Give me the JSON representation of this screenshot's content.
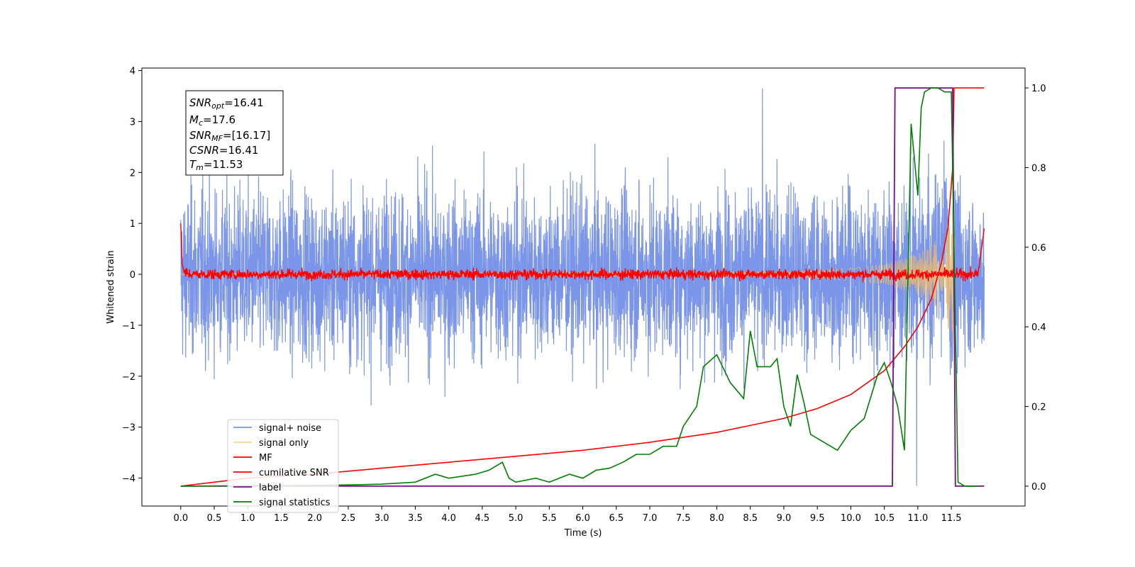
{
  "chart_data": {
    "type": "line",
    "xlabel": "Time (s)",
    "ylabel": "Whitened strain",
    "xlim": [
      -0.58,
      12.6
    ],
    "ylim": [
      -4.55,
      4.05
    ],
    "y2lim": [
      -0.05,
      1.05
    ],
    "x_ticks": [
      "0.0",
      "0.5",
      "1.0",
      "1.5",
      "2.0",
      "2.5",
      "3.0",
      "3.5",
      "4.0",
      "4.5",
      "5.0",
      "5.5",
      "6.0",
      "6.5",
      "7.0",
      "7.5",
      "8.0",
      "8.5",
      "9.0",
      "9.5",
      "10.0",
      "10.5",
      "11.0",
      "11.5"
    ],
    "y_ticks": [
      "4",
      "3",
      "2",
      "1",
      "0",
      "−1",
      "−2",
      "−3",
      "−4"
    ],
    "y2_ticks": [
      "1.0",
      "0.8",
      "0.6",
      "0.4",
      "0.2",
      "0.0"
    ],
    "legend_position": "lower-left",
    "legend": [
      {
        "label": "signal+ noise",
        "color": "#7b96e8"
      },
      {
        "label": "signal only",
        "color": "#f5d78e"
      },
      {
        "label": "MF",
        "color": "#ff0000"
      },
      {
        "label": "cumilative SNR",
        "color": "#ff0000"
      },
      {
        "label": "label",
        "color": "#7b0a8c"
      },
      {
        "label": "signal statistics",
        "color": "#008000"
      }
    ],
    "info_box": {
      "snr_opt": {
        "base": "SNR",
        "sub": "opt",
        "value": "=16.41"
      },
      "mc": {
        "base": "M",
        "sub": "c",
        "value": "=17.6"
      },
      "snr_mf": {
        "base": "SNR",
        "sub": "MF",
        "value": "=[16.17]"
      },
      "csnr": {
        "base": "CSNR",
        "sub": "",
        "value": "=16.41"
      },
      "tm": {
        "base": "T",
        "sub": "m",
        "value": "=11.53"
      }
    },
    "series": [
      {
        "name": "signal+ noise",
        "axis": "left",
        "x_range": [
          0.0,
          11.99
        ],
        "noise_std": 0.85,
        "peak": 3.65,
        "trough": -4.15
      },
      {
        "name": "signal only",
        "axis": "left",
        "x_range": [
          0.0,
          11.55
        ],
        "amplitude_x": [
          0.0,
          9.0,
          10.0,
          10.5,
          11.0,
          11.3,
          11.5,
          11.55
        ],
        "amplitude_y": [
          0.02,
          0.06,
          0.12,
          0.2,
          0.4,
          0.7,
          1.2,
          1.6
        ]
      },
      {
        "name": "MF",
        "axis": "left",
        "x": [
          0.0,
          0.02,
          0.05,
          0.1,
          11.9,
          11.95,
          11.99
        ],
        "y": [
          1.0,
          0.2,
          0.05,
          0.0,
          0.0,
          0.5,
          0.9
        ],
        "noise_std": 0.05
      },
      {
        "name": "cumilative SNR",
        "axis": "right",
        "x": [
          0.0,
          0.5,
          1.0,
          2.0,
          3.0,
          4.0,
          5.0,
          6.0,
          7.0,
          8.0,
          9.0,
          9.5,
          10.0,
          10.5,
          10.8,
          11.0,
          11.2,
          11.35,
          11.45,
          11.52,
          11.54,
          11.99
        ],
        "y": [
          0.0,
          0.01,
          0.02,
          0.03,
          0.045,
          0.06,
          0.075,
          0.09,
          0.11,
          0.135,
          0.17,
          0.195,
          0.23,
          0.29,
          0.35,
          0.4,
          0.47,
          0.56,
          0.65,
          0.8,
          1.0,
          1.0
        ]
      },
      {
        "name": "label",
        "axis": "right",
        "x": [
          0.0,
          10.62,
          10.66,
          11.52,
          11.56,
          11.99
        ],
        "y": [
          0.0,
          0.0,
          1.0,
          1.0,
          0.0,
          0.0
        ]
      },
      {
        "name": "signal statistics",
        "axis": "right",
        "x": [
          0.0,
          1.0,
          2.0,
          2.5,
          3.0,
          3.5,
          3.8,
          4.0,
          4.2,
          4.4,
          4.6,
          4.8,
          4.9,
          5.0,
          5.3,
          5.5,
          5.8,
          6.0,
          6.2,
          6.4,
          6.6,
          6.8,
          7.0,
          7.2,
          7.4,
          7.5,
          7.7,
          7.8,
          8.0,
          8.2,
          8.4,
          8.5,
          8.6,
          8.8,
          8.9,
          9.0,
          9.1,
          9.2,
          9.3,
          9.4,
          9.6,
          9.8,
          10.0,
          10.2,
          10.4,
          10.5,
          10.6,
          10.7,
          10.8,
          10.9,
          11.0,
          11.05,
          11.1,
          11.2,
          11.3,
          11.4,
          11.5,
          11.6,
          11.7,
          11.9
        ],
        "y": [
          0.0,
          0.001,
          0.002,
          0.003,
          0.005,
          0.01,
          0.03,
          0.02,
          0.025,
          0.03,
          0.04,
          0.06,
          0.02,
          0.01,
          0.02,
          0.01,
          0.03,
          0.02,
          0.04,
          0.045,
          0.06,
          0.08,
          0.08,
          0.1,
          0.1,
          0.15,
          0.2,
          0.3,
          0.33,
          0.26,
          0.22,
          0.39,
          0.3,
          0.3,
          0.32,
          0.2,
          0.15,
          0.28,
          0.21,
          0.13,
          0.11,
          0.09,
          0.14,
          0.17,
          0.28,
          0.31,
          0.26,
          0.2,
          0.09,
          0.91,
          0.73,
          0.95,
          0.99,
          1.0,
          1.0,
          0.99,
          0.99,
          0.01,
          0.0,
          0.0
        ]
      }
    ]
  }
}
